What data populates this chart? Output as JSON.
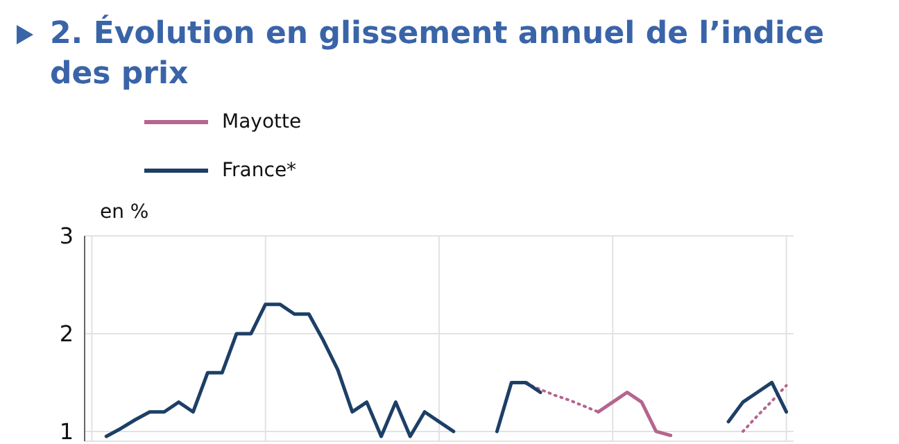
{
  "chart_data": {
    "type": "line",
    "title": "2. Évolution en glissement annuel de l’indice des prix",
    "ylabel": "en %",
    "categories": [
      null,
      null,
      null,
      null,
      null,
      null,
      null,
      null,
      null,
      null,
      null,
      null,
      null,
      null,
      null,
      null,
      null,
      null,
      null,
      null,
      null,
      null,
      null,
      null,
      null,
      null,
      null,
      null,
      null,
      null,
      null,
      null,
      null,
      null,
      null,
      null,
      null,
      null,
      null,
      null,
      null,
      null,
      null,
      null,
      null,
      null,
      null,
      null,
      null
    ],
    "ylim": [
      0.9,
      3
    ],
    "yticks": [
      1,
      2,
      3
    ],
    "grid": true,
    "legend": "top",
    "series": [
      {
        "name": "Mayotte",
        "color": "#b5658f",
        "values": [
          null,
          null,
          null,
          null,
          null,
          null,
          null,
          null,
          null,
          null,
          null,
          null,
          null,
          null,
          null,
          null,
          null,
          null,
          null,
          null,
          null,
          null,
          null,
          null,
          null,
          null,
          null,
          null,
          null,
          null,
          null,
          null,
          null,
          null,
          null,
          1.2,
          1.3,
          1.4,
          1.3,
          1.0,
          0.96,
          null,
          null,
          null,
          null,
          null,
          null,
          null,
          null
        ]
      },
      {
        "color": "#b5658f",
        "line_style": "dotted",
        "values": [
          null,
          null,
          null,
          null,
          null,
          null,
          null,
          null,
          null,
          null,
          null,
          null,
          null,
          null,
          null,
          null,
          null,
          null,
          null,
          null,
          null,
          null,
          null,
          null,
          null,
          null,
          null,
          null,
          null,
          null,
          1.49,
          1.43,
          1.37,
          1.32,
          1.26,
          1.2,
          null,
          null,
          null,
          null,
          null,
          null,
          null,
          null,
          null,
          1.0,
          1.16,
          1.31,
          1.47
        ]
      },
      {
        "name": "France*",
        "color": "#1d3f66",
        "values": [
          null,
          0.95,
          1.03,
          1.12,
          1.2,
          1.2,
          1.3,
          1.2,
          1.6,
          1.6,
          2.0,
          2.0,
          2.3,
          2.3,
          2.2,
          2.2,
          1.93,
          1.63,
          1.2,
          1.3,
          0.95,
          1.3,
          0.95,
          1.2,
          1.1,
          1.0,
          null,
          null,
          1.0,
          1.5,
          1.5,
          1.4,
          null,
          null,
          null,
          null,
          null,
          null,
          null,
          null,
          null,
          null,
          null,
          null,
          1.1,
          1.3,
          1.4,
          1.5,
          1.2
        ]
      }
    ]
  }
}
